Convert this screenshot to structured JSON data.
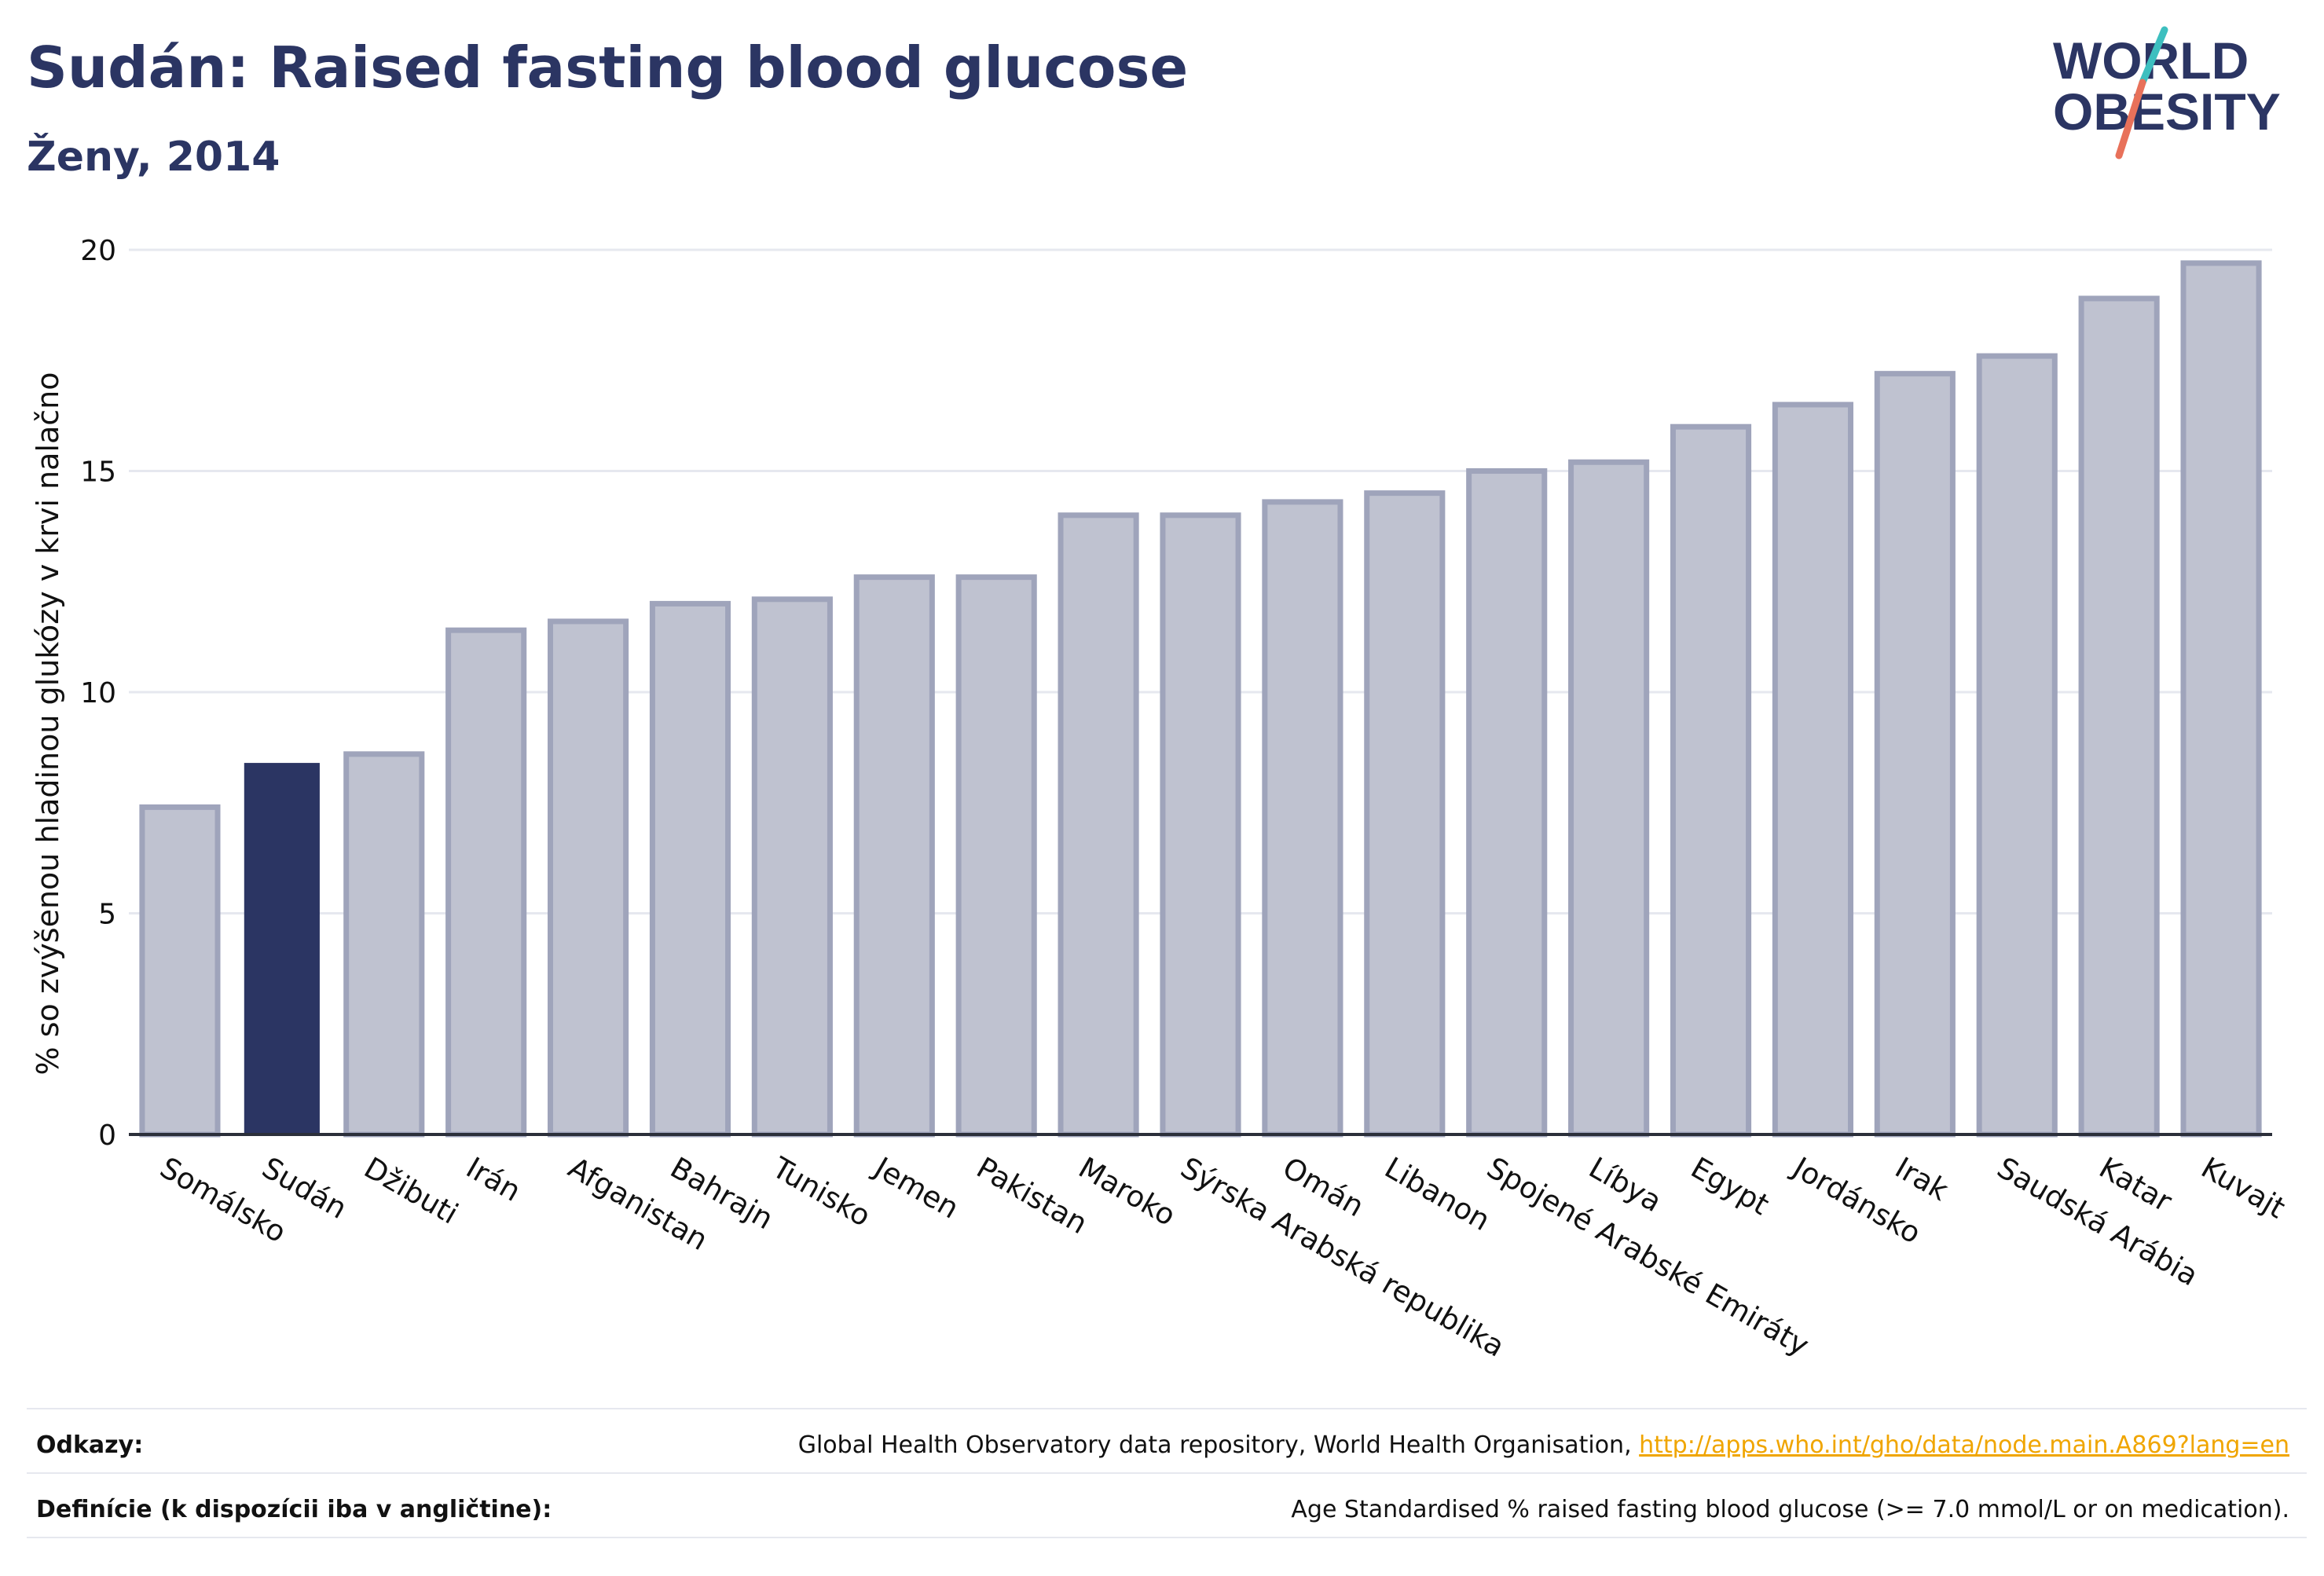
{
  "header": {
    "title": "Sudán: Raised fasting blood glucose",
    "subtitle": "Ženy, 2014"
  },
  "logo": {
    "line1": "WORLD",
    "line2": "OBESITY"
  },
  "colors": {
    "highlight": "#2b3563",
    "bar_fill": "#bfc2d0",
    "bar_stroke": "#9fa4bb",
    "grid": "#e6e8ef",
    "text_dark": "#2b3563",
    "logo_teal": "#3dbfbf",
    "logo_coral": "#e8715a",
    "link": "#f0a500"
  },
  "chart_data": {
    "type": "bar",
    "categories": [
      "Somálsko",
      "Sudán",
      "Džibuti",
      "Irán",
      "Afganistan",
      "Bahrajn",
      "Tunisko",
      "Jemen",
      "Pakistan",
      "Maroko",
      "Sýrska Arabská republika",
      "Omán",
      "Libanon",
      "Spojené Arabské Emiráty",
      "Líbya",
      "Egypt",
      "Jordánsko",
      "Irak",
      "Saudská Arábia",
      "Katar",
      "Kuvajt"
    ],
    "values": [
      7.4,
      8.4,
      8.6,
      11.4,
      11.6,
      12.0,
      12.1,
      12.6,
      12.6,
      14.0,
      14.0,
      14.3,
      14.5,
      15.0,
      15.2,
      16.0,
      16.5,
      17.2,
      17.6,
      18.9,
      19.7
    ],
    "highlight": "Sudán",
    "ylabel": "% so zvýšenou hladinou glukózy v krvi nalačno",
    "ylim": [
      0,
      20
    ],
    "yticks": [
      0,
      5,
      10,
      15,
      20
    ],
    "grid": true
  },
  "footer": {
    "sources_label": "Odkazy:",
    "sources_text": "Global Health Observatory data repository, World Health Organisation, ",
    "sources_link": "http://apps.who.int/gho/data/node.main.A869?lang=en",
    "definitions_label": "Definície (k dispozícii iba v angličtine):",
    "definitions_text": "Age Standardised % raised fasting blood glucose (>= 7.0 mmol/L or on medication)."
  }
}
